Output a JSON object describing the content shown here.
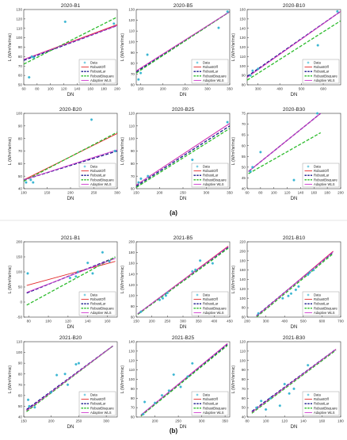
{
  "figure": {
    "panel_labels": [
      "(a)",
      "(b)"
    ],
    "ylabel": "L (W/m²/sr/mic)",
    "xlabel": "DN",
    "legend": [
      "Data",
      "RobustOff",
      "RobustLar",
      "RobustBisquare",
      "Adaptive WLS"
    ],
    "colors": {
      "data": "#35b4d1",
      "RobustOff": "#e32a2a",
      "RobustLar": "#1a1a8c",
      "RobustBisquare": "#2cbb2c",
      "Adaptive WLS": "#cc33cc"
    }
  },
  "chart_data": [
    {
      "type": "scatter",
      "title": "2020-B1",
      "xlabel": "DN",
      "ylabel": "L (W/m²/sr/mic)",
      "xlim": [
        60,
        200
      ],
      "ylim": [
        50,
        130
      ],
      "xticks": [
        60,
        80,
        100,
        120,
        140,
        160,
        180,
        200
      ],
      "yticks": [
        50,
        60,
        70,
        80,
        90,
        100,
        110,
        120,
        130
      ],
      "points": [
        [
          68,
          58
        ],
        [
          72,
          80
        ],
        [
          75,
          79
        ],
        [
          122,
          117
        ],
        [
          195,
          115
        ]
      ],
      "lines": [
        {
          "name": "RobustOff",
          "x": [
            60,
            200
          ],
          "y": [
            77,
            114
          ]
        },
        {
          "name": "RobustLar",
          "x": [
            60,
            200
          ],
          "y": [
            76,
            113
          ]
        },
        {
          "name": "RobustBisquare",
          "x": [
            60,
            200
          ],
          "y": [
            72,
            122
          ]
        },
        {
          "name": "Adaptive WLS",
          "x": [
            60,
            200
          ],
          "y": [
            77,
            113
          ]
        }
      ],
      "legend": "bottom-right"
    },
    {
      "type": "scatter",
      "title": "2020-B5",
      "xlabel": "DN",
      "ylabel": "L (W/m²/sr/mic)",
      "xlim": [
        140,
        350
      ],
      "ylim": [
        60,
        130
      ],
      "xticks": [
        150,
        200,
        250,
        300,
        350
      ],
      "yticks": [
        60,
        70,
        80,
        90,
        100,
        110,
        120,
        130
      ],
      "points": [
        [
          145,
          65
        ],
        [
          150,
          71
        ],
        [
          165,
          88
        ],
        [
          325,
          113
        ],
        [
          345,
          128
        ]
      ],
      "lines": [
        {
          "name": "RobustOff",
          "x": [
            140,
            350
          ],
          "y": [
            73,
            128
          ]
        },
        {
          "name": "RobustLar",
          "x": [
            140,
            350
          ],
          "y": [
            72,
            128
          ]
        },
        {
          "name": "RobustBisquare",
          "x": [
            140,
            350
          ],
          "y": [
            71,
            128
          ]
        },
        {
          "name": "Adaptive WLS",
          "x": [
            140,
            350
          ],
          "y": [
            73,
            128
          ]
        }
      ],
      "legend": "bottom-right"
    },
    {
      "type": "scatter",
      "title": "2020-B10",
      "xlabel": "DN",
      "ylabel": "L (W/m²/sr/mic)",
      "xlim": [
        250,
        680
      ],
      "ylim": [
        80,
        160
      ],
      "xticks": [
        300,
        400,
        500,
        600
      ],
      "yticks": [
        80,
        90,
        100,
        110,
        120,
        130,
        140,
        150,
        160
      ],
      "points": [
        [
          265,
          90
        ],
        [
          275,
          95
        ],
        [
          300,
          97
        ],
        [
          575,
          122
        ],
        [
          665,
          158
        ]
      ],
      "lines": [
        {
          "name": "RobustOff",
          "x": [
            250,
            680
          ],
          "y": [
            88,
            158
          ]
        },
        {
          "name": "RobustLar",
          "x": [
            250,
            680
          ],
          "y": [
            89,
            158
          ]
        },
        {
          "name": "RobustBisquare",
          "x": [
            250,
            680
          ],
          "y": [
            85,
            148
          ]
        },
        {
          "name": "Adaptive WLS",
          "x": [
            250,
            680
          ],
          "y": [
            88,
            158
          ]
        }
      ],
      "legend": "bottom-right"
    },
    {
      "type": "scatter",
      "title": "2020-B20",
      "xlabel": "DN",
      "ylabel": "L (W/m²/sr/mic)",
      "xlim": [
        100,
        300
      ],
      "ylim": [
        40,
        100
      ],
      "xticks": [
        100,
        150,
        200,
        250,
        300
      ],
      "yticks": [
        40,
        50,
        60,
        70,
        80,
        90,
        100
      ],
      "points": [
        [
          105,
          45
        ],
        [
          115,
          47
        ],
        [
          120,
          45
        ],
        [
          245,
          95
        ],
        [
          295,
          70
        ]
      ],
      "lines": [
        {
          "name": "RobustOff",
          "x": [
            100,
            300
          ],
          "y": [
            47,
            84
          ]
        },
        {
          "name": "RobustLar",
          "x": [
            100,
            300
          ],
          "y": [
            47,
            70
          ]
        },
        {
          "name": "RobustBisquare",
          "x": [
            100,
            300
          ],
          "y": [
            46,
            85
          ]
        },
        {
          "name": "Adaptive WLS",
          "x": [
            100,
            300
          ],
          "y": [
            47,
            71
          ]
        }
      ],
      "legend": "bottom-right"
    },
    {
      "type": "scatter",
      "title": "2020-B25",
      "xlabel": "DN",
      "ylabel": "L (W/m²/sr/mic)",
      "xlim": [
        150,
        350
      ],
      "ylim": [
        60,
        120
      ],
      "xticks": [
        150,
        200,
        250,
        300,
        350
      ],
      "yticks": [
        60,
        70,
        80,
        90,
        100,
        110,
        120
      ],
      "points": [
        [
          155,
          65
        ],
        [
          160,
          68
        ],
        [
          175,
          70
        ],
        [
          270,
          83
        ],
        [
          345,
          113
        ]
      ],
      "lines": [
        {
          "name": "RobustOff",
          "x": [
            150,
            350
          ],
          "y": [
            63,
            112
          ]
        },
        {
          "name": "RobustLar",
          "x": [
            150,
            350
          ],
          "y": [
            62,
            110
          ]
        },
        {
          "name": "RobustBisquare",
          "x": [
            150,
            350
          ],
          "y": [
            61,
            108
          ]
        },
        {
          "name": "Adaptive WLS",
          "x": [
            150,
            350
          ],
          "y": [
            63,
            112
          ]
        }
      ],
      "legend": "bottom-right"
    },
    {
      "type": "scatter",
      "title": "2020-B30",
      "xlabel": "DN",
      "ylabel": "L (W/m²/sr/mic)",
      "xlim": [
        60,
        200
      ],
      "ylim": [
        40,
        75
      ],
      "xticks": [
        60,
        80,
        100,
        120,
        140,
        160,
        180,
        200
      ],
      "yticks": [
        40,
        45,
        50,
        55,
        60,
        65,
        70,
        75
      ],
      "points": [
        [
          65,
          48
        ],
        [
          68,
          50
        ],
        [
          80,
          57
        ],
        [
          130,
          44
        ],
        [
          165,
          75
        ]
      ],
      "lines": [
        {
          "name": "RobustOff",
          "x": [
            62,
            170
          ],
          "y": [
            48,
            75
          ]
        },
        {
          "name": "RobustLar",
          "x": [
            62,
            170
          ],
          "y": [
            48,
            75
          ]
        },
        {
          "name": "RobustBisquare",
          "x": [
            62,
            170
          ],
          "y": [
            47,
            66
          ]
        },
        {
          "name": "Adaptive WLS",
          "x": [
            62,
            170
          ],
          "y": [
            48,
            75
          ]
        }
      ],
      "legend": "bottom-right"
    },
    {
      "type": "scatter",
      "title": "2021-B1",
      "xlabel": "DN",
      "ylabel": "L (W/m²/sr/mic)",
      "xlim": [
        75,
        170
      ],
      "ylim": [
        -50,
        200
      ],
      "xticks": [
        80,
        100,
        120,
        140,
        160
      ],
      "yticks": [
        -50,
        0,
        50,
        100,
        150,
        200
      ],
      "points": [
        [
          79,
          95
        ],
        [
          122,
          80
        ],
        [
          128,
          85
        ],
        [
          130,
          100
        ],
        [
          140,
          130
        ],
        [
          145,
          95
        ],
        [
          155,
          165
        ],
        [
          162,
          135
        ]
      ],
      "lines": [
        {
          "name": "RobustOff",
          "x": [
            78,
            168
          ],
          "y": [
            55,
            135
          ]
        },
        {
          "name": "RobustLar",
          "x": [
            78,
            168
          ],
          "y": [
            30,
            148
          ]
        },
        {
          "name": "RobustBisquare",
          "x": [
            78,
            168
          ],
          "y": [
            -10,
            150
          ]
        },
        {
          "name": "Adaptive WLS",
          "x": [
            78,
            168
          ],
          "y": [
            32,
            145
          ]
        }
      ],
      "legend": "bottom-right"
    },
    {
      "type": "scatter",
      "title": "2021-B5",
      "xlabel": "DN",
      "ylabel": "L (W/m²/sr/mic)",
      "xlim": [
        150,
        450
      ],
      "ylim": [
        60,
        200
      ],
      "xticks": [
        150,
        200,
        250,
        300,
        350,
        400,
        450
      ],
      "yticks": [
        60,
        80,
        100,
        120,
        140,
        160,
        180,
        200
      ],
      "points": [
        [
          165,
          70
        ],
        [
          225,
          92
        ],
        [
          235,
          95
        ],
        [
          245,
          100
        ],
        [
          250,
          105
        ],
        [
          330,
          145
        ],
        [
          340,
          148
        ],
        [
          355,
          165
        ],
        [
          395,
          160
        ]
      ],
      "lines": [
        {
          "name": "RobustOff",
          "x": [
            155,
            445
          ],
          "y": [
            66,
            192
          ]
        },
        {
          "name": "RobustLar",
          "x": [
            155,
            445
          ],
          "y": [
            66,
            190
          ]
        },
        {
          "name": "RobustBisquare",
          "x": [
            155,
            445
          ],
          "y": [
            65,
            188
          ]
        },
        {
          "name": "Adaptive WLS",
          "x": [
            155,
            445
          ],
          "y": [
            66,
            191
          ]
        }
      ],
      "legend": "bottom-right"
    },
    {
      "type": "scatter",
      "title": "2021-B10",
      "xlabel": "DN",
      "ylabel": "L (W/m²/sr/mic)",
      "xlim": [
        200,
        700
      ],
      "ylim": [
        60,
        220
      ],
      "xticks": [
        200,
        300,
        400,
        500,
        600,
        700
      ],
      "yticks": [
        60,
        80,
        100,
        120,
        140,
        160,
        180,
        200,
        220
      ],
      "points": [
        [
          260,
          68
        ],
        [
          390,
          100
        ],
        [
          420,
          105
        ],
        [
          435,
          110
        ],
        [
          460,
          118
        ],
        [
          475,
          125
        ],
        [
          525,
          150
        ],
        [
          535,
          155
        ],
        [
          555,
          160
        ]
      ],
      "lines": [
        {
          "name": "RobustOff",
          "x": [
            250,
            660
          ],
          "y": [
            62,
            200
          ]
        },
        {
          "name": "RobustLar",
          "x": [
            250,
            660
          ],
          "y": [
            63,
            198
          ]
        },
        {
          "name": "RobustBisquare",
          "x": [
            250,
            660
          ],
          "y": [
            60,
            195
          ]
        },
        {
          "name": "Adaptive WLS",
          "x": [
            250,
            660
          ],
          "y": [
            62,
            199
          ]
        }
      ],
      "legend": "bottom-right"
    },
    {
      "type": "scatter",
      "title": "2021-B20",
      "xlabel": "DN",
      "ylabel": "L (W/m²/sr/mic)",
      "xlim": [
        150,
        320
      ],
      "ylim": [
        40,
        110
      ],
      "xticks": [
        150,
        200,
        250,
        300
      ],
      "yticks": [
        40,
        50,
        60,
        70,
        80,
        90,
        100,
        110
      ],
      "points": [
        [
          158,
          56
        ],
        [
          160,
          50
        ],
        [
          170,
          49
        ],
        [
          200,
          63
        ],
        [
          210,
          79
        ],
        [
          225,
          80
        ],
        [
          230,
          70
        ],
        [
          245,
          89
        ],
        [
          250,
          90
        ]
      ],
      "lines": [
        {
          "name": "RobustOff",
          "x": [
            155,
            312
          ],
          "y": [
            46,
            106
          ]
        },
        {
          "name": "RobustLar",
          "x": [
            155,
            312
          ],
          "y": [
            47,
            106
          ]
        },
        {
          "name": "RobustBisquare",
          "x": [
            155,
            312
          ],
          "y": [
            45,
            106
          ]
        },
        {
          "name": "Adaptive WLS",
          "x": [
            155,
            312
          ],
          "y": [
            46,
            106
          ]
        }
      ],
      "legend": "bottom-right"
    },
    {
      "type": "scatter",
      "title": "2021-B25",
      "xlabel": "DN",
      "ylabel": "L (W/m²/sr/mic)",
      "xlim": [
        160,
        360
      ],
      "ylim": [
        60,
        140
      ],
      "xticks": [
        200,
        250,
        300,
        350
      ],
      "yticks": [
        60,
        70,
        80,
        90,
        100,
        110,
        120,
        130,
        140
      ],
      "points": [
        [
          175,
          63
        ],
        [
          178,
          76
        ],
        [
          200,
          75
        ],
        [
          215,
          83
        ],
        [
          230,
          88
        ],
        [
          240,
          105
        ],
        [
          255,
          92
        ],
        [
          270,
          103
        ],
        [
          280,
          117
        ]
      ],
      "lines": [
        {
          "name": "RobustOff",
          "x": [
            170,
            355
          ],
          "y": [
            62,
            138
          ]
        },
        {
          "name": "RobustLar",
          "x": [
            170,
            355
          ],
          "y": [
            62,
            137
          ]
        },
        {
          "name": "RobustBisquare",
          "x": [
            170,
            355
          ],
          "y": [
            61,
            136
          ]
        },
        {
          "name": "Adaptive WLS",
          "x": [
            170,
            355
          ],
          "y": [
            62,
            138
          ]
        }
      ],
      "legend": "bottom-right"
    },
    {
      "type": "scatter",
      "title": "2021-B30",
      "xlabel": "DN",
      "ylabel": "L (W/m²/sr/mic)",
      "xlim": [
        80,
        180
      ],
      "ylim": [
        40,
        120
      ],
      "xticks": [
        80,
        100,
        120,
        140,
        160,
        180
      ],
      "yticks": [
        40,
        50,
        60,
        70,
        80,
        90,
        100,
        110,
        120
      ],
      "points": [
        [
          90,
          50
        ],
        [
          95,
          57
        ],
        [
          100,
          48
        ],
        [
          105,
          60
        ],
        [
          115,
          52
        ],
        [
          120,
          75
        ],
        [
          125,
          65
        ],
        [
          130,
          70
        ],
        [
          145,
          95
        ]
      ],
      "lines": [
        {
          "name": "RobustOff",
          "x": [
            85,
            175
          ],
          "y": [
            45,
            112
          ]
        },
        {
          "name": "RobustLar",
          "x": [
            85,
            175
          ],
          "y": [
            46,
            112
          ]
        },
        {
          "name": "RobustBisquare",
          "x": [
            85,
            175
          ],
          "y": [
            44,
            111
          ]
        },
        {
          "name": "Adaptive WLS",
          "x": [
            85,
            175
          ],
          "y": [
            45,
            112
          ]
        }
      ],
      "legend": "bottom-right"
    }
  ]
}
